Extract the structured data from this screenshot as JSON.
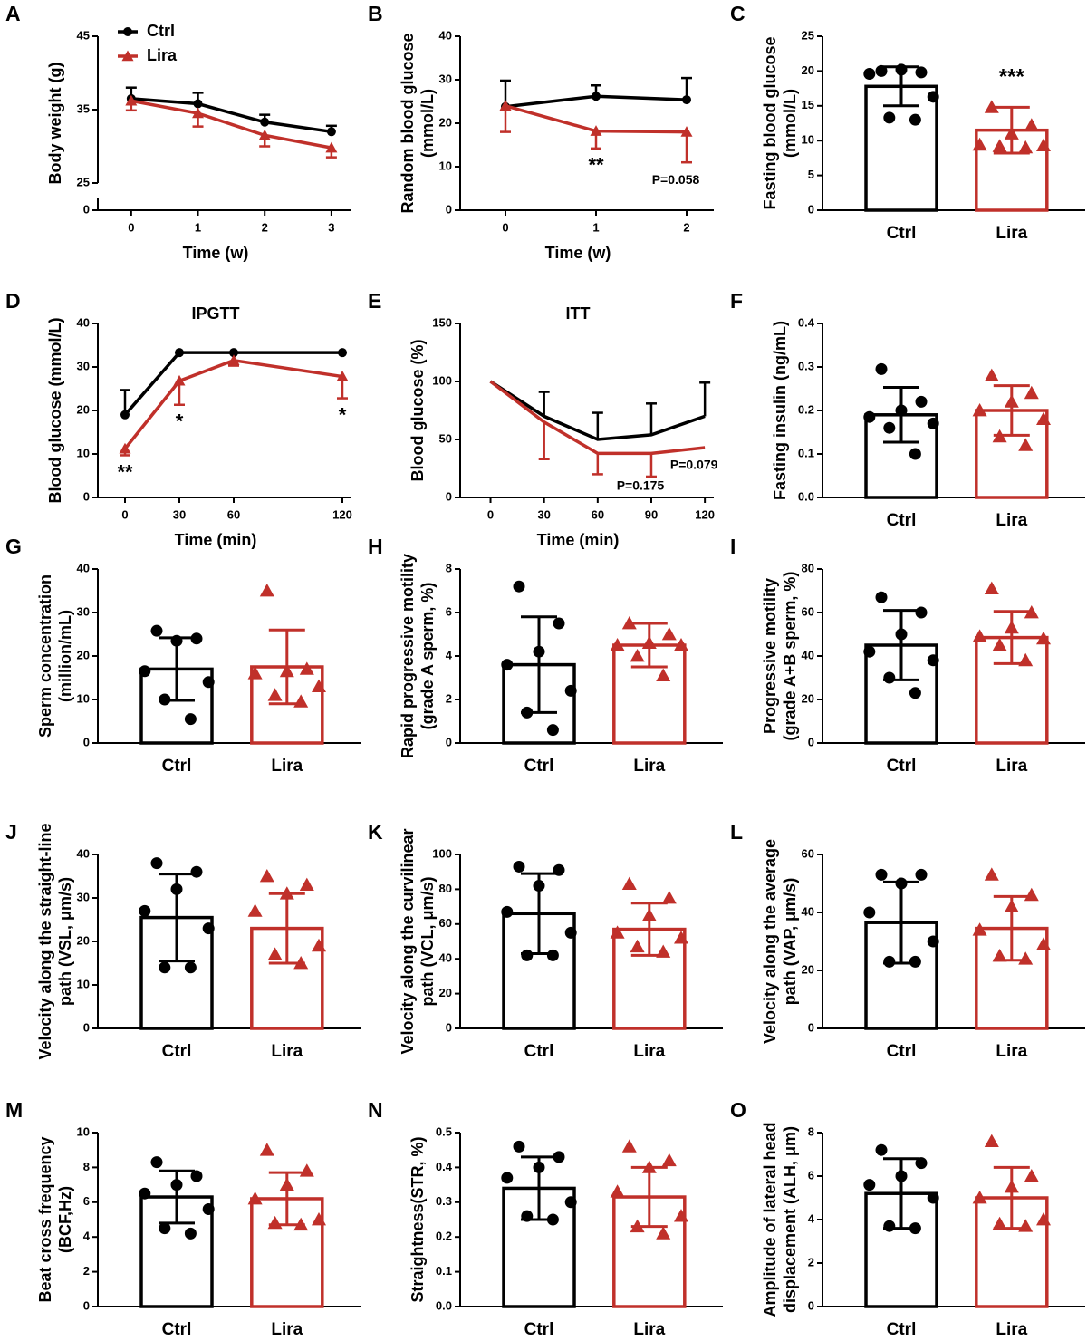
{
  "chart_data": [
    {
      "panel": "A",
      "type": "line",
      "ylabel": [
        "Body weight (g)"
      ],
      "xlabel": "Time (w)",
      "x": [
        0,
        1,
        2,
        3
      ],
      "xlim": [
        -0.5,
        3.3
      ],
      "xticks": [
        0,
        1,
        2,
        3
      ],
      "ylim": [
        25,
        45
      ],
      "yticks": [
        25,
        35,
        45
      ],
      "ybreak": 0,
      "legend": true,
      "series": [
        {
          "name": "Ctrl",
          "color": "#000000",
          "marker": "circle",
          "error_dir": "up",
          "values": [
            36.5,
            35.8,
            33.3,
            32.0
          ],
          "errors": [
            1.5,
            1.5,
            1.0,
            0.8
          ]
        },
        {
          "name": "Lira",
          "color": "#c0302a",
          "marker": "triangle",
          "error_dir": "down",
          "values": [
            36.2,
            34.5,
            31.5,
            29.8
          ],
          "errors": [
            1.3,
            1.8,
            1.5,
            1.3
          ]
        }
      ]
    },
    {
      "panel": "B",
      "type": "line",
      "ylabel": [
        "Random blood glucose",
        "(mmol/L)"
      ],
      "xlabel": "Time (w)",
      "x": [
        0,
        1,
        2
      ],
      "xlim": [
        -0.5,
        2.3
      ],
      "xticks": [
        0,
        1,
        2
      ],
      "ylim": [
        0,
        40
      ],
      "yticks": [
        0,
        10,
        20,
        30,
        40
      ],
      "sig_labels": [
        null,
        "**",
        "P=0.058"
      ],
      "series": [
        {
          "name": "Ctrl",
          "color": "#000000",
          "marker": "circle",
          "error_dir": "up",
          "values": [
            23.8,
            26.2,
            25.4
          ],
          "errors": [
            6.0,
            2.5,
            5.0
          ]
        },
        {
          "name": "Lira",
          "color": "#c0302a",
          "marker": "triangle",
          "error_dir": "down",
          "values": [
            24.0,
            18.2,
            18.0
          ],
          "errors": [
            6.0,
            4.0,
            7.0
          ]
        }
      ]
    },
    {
      "panel": "C",
      "type": "bar",
      "ylabel": [
        "Fasting blood glucose",
        "(mmol/L)"
      ],
      "categories": [
        "Ctrl",
        "Lira"
      ],
      "colors": [
        "#000000",
        "#c0302a"
      ],
      "markers": [
        "circle",
        "triangle"
      ],
      "values": [
        17.8,
        11.5
      ],
      "errors": [
        2.8,
        3.3
      ],
      "points": [
        [
          20.0,
          19.8,
          20.2,
          19.6,
          16.3,
          13.3,
          13.0
        ],
        [
          14.8,
          12.2,
          11.0,
          9.4,
          9.3,
          9.2,
          9.0
        ]
      ],
      "ylim": [
        0,
        25
      ],
      "yticks": [
        0,
        5,
        10,
        15,
        20,
        25
      ],
      "sig_labels": [
        null,
        "***"
      ]
    },
    {
      "panel": "D",
      "type": "line",
      "title": "IPGTT",
      "ylabel": [
        "Blood glucose (mmol/L)"
      ],
      "xlabel": "Time (min)",
      "x": [
        0,
        30,
        60,
        120
      ],
      "xlim": [
        -15,
        125
      ],
      "xticks": [
        0,
        30,
        60,
        120
      ],
      "ylim": [
        0,
        40
      ],
      "yticks": [
        0,
        10,
        20,
        30,
        40
      ],
      "sig_labels": [
        "**",
        "*",
        null,
        "*"
      ],
      "series": [
        {
          "name": "Ctrl",
          "color": "#000000",
          "marker": "circle",
          "error_dir": "up",
          "values": [
            19.0,
            33.3,
            33.3,
            33.3
          ],
          "errors": [
            5.7,
            0,
            0,
            0
          ]
        },
        {
          "name": "Lira",
          "color": "#c0302a",
          "marker": "triangle",
          "error_dir": "down",
          "values": [
            11.2,
            26.8,
            31.5,
            27.8
          ],
          "errors": [
            1.5,
            5.5,
            1.2,
            5.0
          ]
        }
      ]
    },
    {
      "panel": "E",
      "type": "line",
      "title": "ITT",
      "ylabel": [
        "Blood glucose (%)"
      ],
      "xlabel": "Time (min)",
      "x": [
        0,
        30,
        60,
        90,
        120
      ],
      "xlim": [
        -17,
        125
      ],
      "xticks": [
        0,
        30,
        60,
        90,
        120
      ],
      "ylim": [
        0,
        150
      ],
      "yticks": [
        0,
        50,
        100,
        150
      ],
      "sig_labels": [
        null,
        null,
        null,
        "P=0.175",
        "P=0.079"
      ],
      "series": [
        {
          "name": "Ctrl",
          "color": "#000000",
          "marker": "none",
          "error_dir": "up",
          "values": [
            100,
            70,
            50,
            54,
            70
          ],
          "errors": [
            0,
            21,
            23,
            27,
            29
          ]
        },
        {
          "name": "Lira",
          "color": "#c0302a",
          "marker": "none",
          "error_dir": "down",
          "values": [
            100,
            65,
            38,
            38,
            43
          ],
          "errors": [
            0,
            32,
            18,
            20,
            0
          ]
        }
      ]
    },
    {
      "panel": "F",
      "type": "bar",
      "ylabel": [
        "Fasting insulin (ng/mL)"
      ],
      "categories": [
        "Ctrl",
        "Lira"
      ],
      "colors": [
        "#000000",
        "#c0302a"
      ],
      "markers": [
        "circle",
        "triangle"
      ],
      "values": [
        0.19,
        0.2
      ],
      "errors": [
        0.063,
        0.057
      ],
      "points": [
        [
          0.295,
          0.22,
          0.2,
          0.185,
          0.17,
          0.16,
          0.1
        ],
        [
          0.28,
          0.24,
          0.22,
          0.2,
          0.18,
          0.14,
          0.12
        ]
      ],
      "ylim": [
        0,
        0.4
      ],
      "yticks": [
        {
          "value": 0,
          "label": "0.0"
        },
        0.1,
        0.2,
        0.3,
        0.4
      ]
    },
    {
      "panel": "G",
      "type": "bar",
      "ylabel": [
        "Sperm concentration",
        "(million/mL)"
      ],
      "categories": [
        "Ctrl",
        "Lira"
      ],
      "colors": [
        "#000000",
        "#c0302a"
      ],
      "markers": [
        "circle",
        "triangle"
      ],
      "values": [
        17.0,
        17.5
      ],
      "errors": [
        7.2,
        8.5
      ],
      "points": [
        [
          25.8,
          24.0,
          23.5,
          16.5,
          14.0,
          10.0,
          5.5
        ],
        [
          35.0,
          17.0,
          16.5,
          16.0,
          13.0,
          11.0,
          9.5
        ]
      ],
      "ylim": [
        0,
        40
      ],
      "yticks": [
        0,
        10,
        20,
        30,
        40
      ]
    },
    {
      "panel": "H",
      "type": "bar",
      "ylabel": [
        "Rapid progressive motility",
        "(grade A sperm, %)"
      ],
      "categories": [
        "Ctrl",
        "Lira"
      ],
      "colors": [
        "#000000",
        "#c0302a"
      ],
      "markers": [
        "circle",
        "triangle"
      ],
      "values": [
        3.6,
        4.5
      ],
      "errors": [
        2.2,
        1.0
      ],
      "points": [
        [
          7.2,
          5.5,
          4.2,
          3.6,
          2.4,
          1.4,
          0.6
        ],
        [
          5.5,
          5.0,
          4.6,
          4.5,
          4.5,
          4.0,
          3.1
        ]
      ],
      "ylim": [
        0,
        8
      ],
      "yticks": [
        0,
        2,
        4,
        6,
        8
      ]
    },
    {
      "panel": "I",
      "type": "bar",
      "ylabel": [
        "Progressive motility",
        "(grade A+B sperm, %)"
      ],
      "categories": [
        "Ctrl",
        "Lira"
      ],
      "colors": [
        "#000000",
        "#c0302a"
      ],
      "markers": [
        "circle",
        "triangle"
      ],
      "values": [
        45.0,
        48.5
      ],
      "errors": [
        16.0,
        12.0
      ],
      "points": [
        [
          67,
          60,
          50,
          42,
          38,
          30,
          23
        ],
        [
          71,
          60,
          53,
          49,
          48,
          45,
          38
        ]
      ],
      "ylim": [
        0,
        80
      ],
      "yticks": [
        0,
        20,
        40,
        60,
        80
      ]
    },
    {
      "panel": "J",
      "type": "bar",
      "ylabel": [
        "Velocity along the straight-line",
        "path (VSL, μm/s)"
      ],
      "categories": [
        "Ctrl",
        "Lira"
      ],
      "colors": [
        "#000000",
        "#c0302a"
      ],
      "markers": [
        "circle",
        "triangle"
      ],
      "values": [
        25.5,
        23.0
      ],
      "errors": [
        10.0,
        8.0
      ],
      "points": [
        [
          38,
          36,
          32,
          27,
          23,
          14,
          14
        ],
        [
          35,
          33,
          31,
          27,
          19,
          17,
          15
        ]
      ],
      "ylim": [
        0,
        40
      ],
      "yticks": [
        0,
        10,
        20,
        30,
        40
      ]
    },
    {
      "panel": "K",
      "type": "bar",
      "ylabel": [
        "Velocity along the curvilinear",
        "path (VCL, μm/s)"
      ],
      "categories": [
        "Ctrl",
        "Lira"
      ],
      "colors": [
        "#000000",
        "#c0302a"
      ],
      "markers": [
        "circle",
        "triangle"
      ],
      "values": [
        66.0,
        57.0
      ],
      "errors": [
        23.0,
        15.0
      ],
      "points": [
        [
          93,
          91,
          82,
          67,
          55,
          42,
          42
        ],
        [
          83,
          75,
          65,
          55,
          52,
          47,
          44
        ]
      ],
      "ylim": [
        0,
        100
      ],
      "yticks": [
        0,
        20,
        40,
        60,
        80,
        100
      ]
    },
    {
      "panel": "L",
      "type": "bar",
      "ylabel": [
        "Velocity along the average",
        "path (VAP, μm/s)"
      ],
      "categories": [
        "Ctrl",
        "Lira"
      ],
      "colors": [
        "#000000",
        "#c0302a"
      ],
      "markers": [
        "circle",
        "triangle"
      ],
      "values": [
        36.5,
        34.5
      ],
      "errors": [
        14.0,
        11.0
      ],
      "points": [
        [
          53,
          53,
          50,
          40,
          30,
          23,
          23
        ],
        [
          53,
          46,
          42,
          34,
          29,
          25,
          24
        ]
      ],
      "ylim": [
        0,
        60
      ],
      "yticks": [
        0,
        20,
        40,
        60
      ]
    },
    {
      "panel": "M",
      "type": "bar",
      "ylabel": [
        "Beat cross frequency",
        "(BCF,Hz)"
      ],
      "categories": [
        "Ctrl",
        "Lira"
      ],
      "colors": [
        "#000000",
        "#c0302a"
      ],
      "markers": [
        "circle",
        "triangle"
      ],
      "values": [
        6.3,
        6.2
      ],
      "errors": [
        1.5,
        1.5
      ],
      "points": [
        [
          8.3,
          7.5,
          7.0,
          6.5,
          5.6,
          4.5,
          4.2
        ],
        [
          9.0,
          7.8,
          7.0,
          6.2,
          5.0,
          4.8,
          4.7
        ]
      ],
      "ylim": [
        0,
        10
      ],
      "yticks": [
        0,
        2,
        4,
        6,
        8,
        10
      ]
    },
    {
      "panel": "N",
      "type": "bar",
      "ylabel": [
        "Straightness(STR, %)"
      ],
      "categories": [
        "Ctrl",
        "Lira"
      ],
      "colors": [
        "#000000",
        "#c0302a"
      ],
      "markers": [
        "circle",
        "triangle"
      ],
      "values": [
        0.34,
        0.315
      ],
      "errors": [
        0.09,
        0.085
      ],
      "points": [
        [
          0.46,
          0.43,
          0.4,
          0.37,
          0.3,
          0.26,
          0.25
        ],
        [
          0.46,
          0.42,
          0.4,
          0.33,
          0.26,
          0.23,
          0.21
        ]
      ],
      "ylim": [
        0,
        0.5
      ],
      "yticks": [
        {
          "value": 0,
          "label": "0.0"
        },
        0.1,
        0.2,
        0.3,
        0.4,
        0.5
      ]
    },
    {
      "panel": "O",
      "type": "bar",
      "ylabel": [
        "Amplitude of lateral head",
        "displacement (ALH, μm)"
      ],
      "categories": [
        "Ctrl",
        "Lira"
      ],
      "colors": [
        "#000000",
        "#c0302a"
      ],
      "markers": [
        "circle",
        "triangle"
      ],
      "values": [
        5.2,
        5.0
      ],
      "errors": [
        1.6,
        1.4
      ],
      "points": [
        [
          7.2,
          6.6,
          6.0,
          5.6,
          5.0,
          3.7,
          3.6
        ],
        [
          7.6,
          6.0,
          5.5,
          5.0,
          4.0,
          3.8,
          3.7
        ]
      ],
      "ylim": [
        0,
        8
      ],
      "yticks": [
        0,
        2,
        4,
        6,
        8
      ]
    }
  ]
}
